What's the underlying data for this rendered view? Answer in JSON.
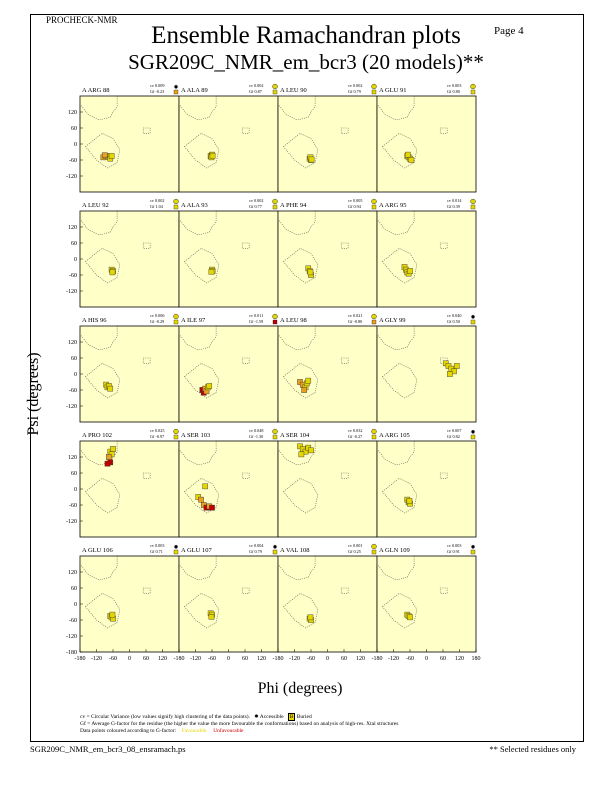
{
  "header": {
    "program": "PROCHECK-NMR",
    "page": "Page  4"
  },
  "title": {
    "line1": "Ensemble Ramachandran plots",
    "line2": "SGR209C_NMR_em_bcr3 (20 models)**"
  },
  "axes": {
    "xlabel": "Phi (degrees)",
    "ylabel": "Psi (degrees)"
  },
  "footer": {
    "cv_note": "cv = Circular Variance (low values signify high clustering of the data points).",
    "accessible": "Accessible",
    "buried": "Buried",
    "gf_note": "Gf = Average G-factor for the residue (the higher the value the more favourable the conformations) based on analysis of high-res. Xtal structures",
    "colour_note": "Data points coloured according to G-factor:",
    "favourable": "Favourable",
    "unfavourable": "Unfavourable",
    "filename": "SGR209C_NMR_em_bcr3_08_ensramach.ps",
    "selected": "** Selected residues only"
  },
  "colors": {
    "panel_bg": "#ffffc8",
    "fav": "#e6d600",
    "unfav": "#c00000",
    "mid": "#e8a020"
  },
  "chart_data": {
    "type": "scatter",
    "xlim": [
      -180,
      180
    ],
    "ylim": [
      -180,
      180
    ],
    "x_ticks": [
      "-180",
      "-120",
      "-60",
      "0",
      "60",
      "120",
      "180"
    ],
    "y_ticks": [
      "120",
      "60",
      "0",
      "-60",
      "-120"
    ],
    "y_ticks_bottom": [
      "120",
      "60",
      "0",
      "-60",
      "-120",
      "-180"
    ],
    "panels": [
      {
        "label": "A ARG 88",
        "cv": "cv 0.009",
        "gf": "Gf -0.23",
        "access": "star",
        "points": [
          [
            -95,
            -50,
            0.7
          ],
          [
            -85,
            -45,
            0.4
          ],
          [
            -75,
            -48,
            0.2
          ],
          [
            -70,
            -55,
            0.1
          ],
          [
            -90,
            -42,
            0.5
          ],
          [
            -65,
            -45,
            0.1
          ]
        ]
      },
      {
        "label": "A ALA 89",
        "cv": "cv 0.002",
        "gf": "Gf 0.87",
        "access": "buried",
        "points": [
          [
            -65,
            -45,
            0.1
          ],
          [
            -60,
            -40,
            0.1
          ],
          [
            -62,
            -50,
            0.1
          ],
          [
            -58,
            -44,
            0.1
          ]
        ]
      },
      {
        "label": "A LEU 90",
        "cv": "cv 0.002",
        "gf": "Gf 0.79",
        "access": "buried",
        "points": [
          [
            -65,
            -55,
            0.1
          ],
          [
            -60,
            -60,
            0.1
          ],
          [
            -62,
            -50,
            0.1
          ],
          [
            -58,
            -58,
            0.1
          ]
        ]
      },
      {
        "label": "A GLU 91",
        "cv": "cv 0.003",
        "gf": "Gf 0.80",
        "access": "buried",
        "points": [
          [
            -70,
            -45,
            0.1
          ],
          [
            -65,
            -50,
            0.1
          ],
          [
            -60,
            -55,
            0.1
          ],
          [
            -55,
            -60,
            0.1
          ],
          [
            -68,
            -40,
            0.1
          ]
        ]
      },
      {
        "label": "A LEU 92",
        "cv": "cv 0.002",
        "gf": "Gf 1.04",
        "access": "buried",
        "points": [
          [
            -65,
            -40,
            0.1
          ],
          [
            -60,
            -45,
            0.1
          ],
          [
            -62,
            -50,
            0.1
          ]
        ]
      },
      {
        "label": "A ALA 93",
        "cv": "cv 0.002",
        "gf": "Gf 0.77",
        "access": "buried",
        "points": [
          [
            -60,
            -40,
            0.1
          ],
          [
            -58,
            -45,
            0.1
          ],
          [
            -62,
            -48,
            0.1
          ]
        ]
      },
      {
        "label": "A PHE 94",
        "cv": "cv 0.005",
        "gf": "Gf 0.94",
        "access": "buried",
        "points": [
          [
            -70,
            -35,
            0.1
          ],
          [
            -65,
            -45,
            0.1
          ],
          [
            -60,
            -60,
            0.1
          ],
          [
            -62,
            -50,
            0.1
          ]
        ]
      },
      {
        "label": "A ARG 95",
        "cv": "cv 0.014",
        "gf": "Gf 0.39",
        "access": "buried",
        "points": [
          [
            -80,
            -30,
            0.2
          ],
          [
            -75,
            -40,
            0.2
          ],
          [
            -70,
            -50,
            0.2
          ],
          [
            -65,
            -55,
            0.1
          ],
          [
            -60,
            -45,
            0.1
          ]
        ]
      },
      {
        "label": "A HIS 96",
        "cv": "cv 0.006",
        "gf": "Gf -0.29",
        "access": "buried",
        "points": [
          [
            -85,
            -40,
            0.4
          ],
          [
            -80,
            -50,
            0.4
          ],
          [
            -75,
            -45,
            0.3
          ],
          [
            -70,
            -55,
            0.2
          ]
        ]
      },
      {
        "label": "A ILE 97",
        "cv": "cv 0.011",
        "gf": "Gf -1.59",
        "access": "buried",
        "points": [
          [
            -95,
            -60,
            0.8
          ],
          [
            -90,
            -70,
            0.9
          ],
          [
            -85,
            -55,
            0.6
          ],
          [
            -80,
            -65,
            0.7
          ],
          [
            -75,
            -50,
            0.4
          ],
          [
            -70,
            -45,
            0.3
          ]
        ]
      },
      {
        "label": "A LEU 98",
        "cv": "cv 0.021",
        "gf": "Gf -0.80",
        "access": "buried",
        "points": [
          [
            -100,
            -30,
            0.6
          ],
          [
            -90,
            -40,
            0.5
          ],
          [
            -80,
            -50,
            0.4
          ],
          [
            -75,
            -35,
            0.4
          ],
          [
            -70,
            -25,
            0.3
          ],
          [
            -85,
            -60,
            0.5
          ]
        ]
      },
      {
        "label": "A GLY 99",
        "cv": "cv 0.040",
        "gf": "Gf 0.50",
        "access": "star",
        "points": [
          [
            70,
            40,
            0.1
          ],
          [
            80,
            30,
            0.1
          ],
          [
            90,
            20,
            0.1
          ],
          [
            100,
            10,
            0.1
          ],
          [
            110,
            30,
            0.2
          ],
          [
            85,
            0,
            0.1
          ]
        ]
      },
      {
        "label": "A PRO 102",
        "cv": "cv 0.025",
        "gf": "Gf -0.97",
        "access": "buried",
        "points": [
          [
            -70,
            140,
            0.3
          ],
          [
            -65,
            130,
            0.3
          ],
          [
            -60,
            150,
            0.2
          ],
          [
            -75,
            120,
            0.5
          ],
          [
            -70,
            100,
            0.9
          ],
          [
            -80,
            95,
            0.9
          ]
        ]
      },
      {
        "label": "A SER 103",
        "cv": "cv 0.048",
        "gf": "Gf -1.30",
        "access": "buried",
        "points": [
          [
            -110,
            -30,
            0.4
          ],
          [
            -100,
            -40,
            0.5
          ],
          [
            -90,
            -60,
            0.7
          ],
          [
            -80,
            -70,
            0.8
          ],
          [
            -70,
            -65,
            0.7
          ],
          [
            -60,
            -70,
            0.8
          ],
          [
            -85,
            10,
            0.3
          ]
        ]
      },
      {
        "label": "A SER 104",
        "cv": "cv 0.032",
        "gf": "Gf -0.27",
        "access": "buried",
        "points": [
          [
            -100,
            160,
            0.3
          ],
          [
            -90,
            150,
            0.3
          ],
          [
            -80,
            140,
            0.2
          ],
          [
            -70,
            155,
            0.3
          ],
          [
            -60,
            145,
            0.2
          ],
          [
            -95,
            130,
            0.3
          ]
        ]
      },
      {
        "label": "A ARG 105",
        "cv": "cv 0.007",
        "gf": "Gf 0.82",
        "access": "star",
        "points": [
          [
            -70,
            -40,
            0.1
          ],
          [
            -65,
            -50,
            0.1
          ],
          [
            -60,
            -55,
            0.1
          ],
          [
            -62,
            -45,
            0.1
          ]
        ]
      },
      {
        "label": "A GLU 106",
        "cv": "cv 0.003",
        "gf": "Gf 0.71",
        "access": "star",
        "points": [
          [
            -70,
            -45,
            0.1
          ],
          [
            -65,
            -50,
            0.1
          ],
          [
            -60,
            -55,
            0.1
          ],
          [
            -62,
            -40,
            0.1
          ]
        ]
      },
      {
        "label": "A GLU 107",
        "cv": "cv 0.004",
        "gf": "Gf 0.79",
        "access": "star",
        "points": [
          [
            -65,
            -35,
            0.1
          ],
          [
            -60,
            -40,
            0.1
          ],
          [
            -62,
            -48,
            0.1
          ]
        ]
      },
      {
        "label": "A VAL 108",
        "cv": "cv 0.001",
        "gf": "Gf 0.25",
        "access": "buried",
        "points": [
          [
            -65,
            -55,
            0.2
          ],
          [
            -60,
            -60,
            0.2
          ],
          [
            -62,
            -50,
            0.2
          ]
        ]
      },
      {
        "label": "A GLN 109",
        "cv": "cv 0.003",
        "gf": "Gf 0.91",
        "access": "star",
        "points": [
          [
            -70,
            -40,
            0.1
          ],
          [
            -65,
            -45,
            0.1
          ],
          [
            -60,
            -50,
            0.1
          ]
        ]
      }
    ]
  }
}
